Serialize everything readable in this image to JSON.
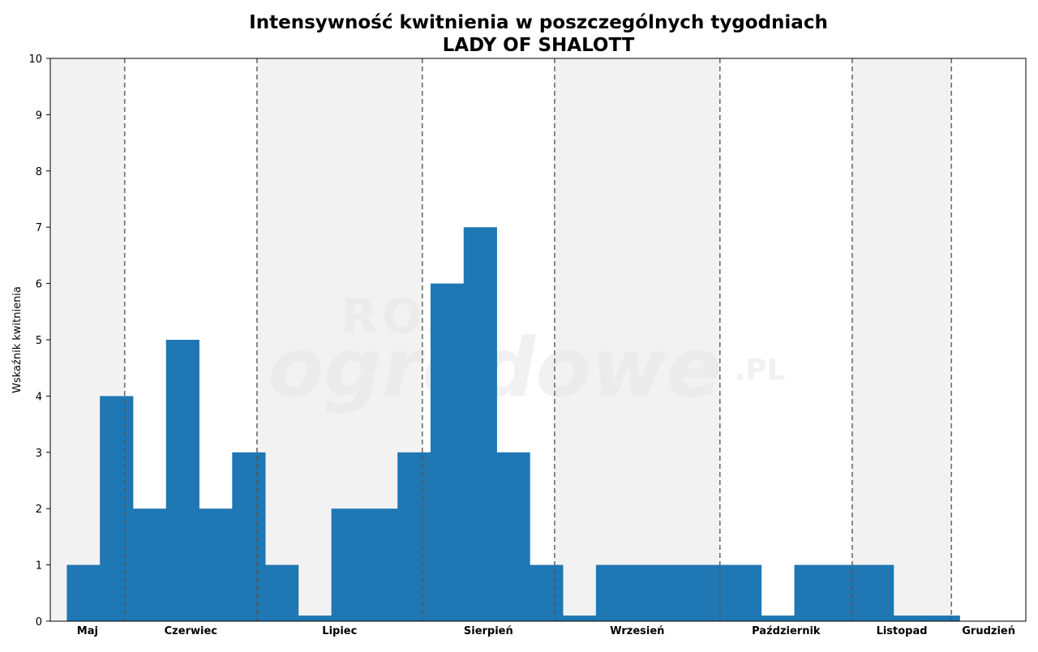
{
  "chart_data": {
    "type": "bar",
    "title": "Intensywność kwitnienia w poszczególnych tygodniach",
    "subtitle": "LADY OF SHALOTT",
    "xlabel": "",
    "ylabel": "Wskaźnik kwitnienia",
    "ylim": [
      0,
      10
    ],
    "yticks": [
      0,
      1,
      2,
      3,
      4,
      5,
      6,
      7,
      8,
      9,
      10
    ],
    "grid": false,
    "watermark": "ROZE ogrodowe .PL",
    "colors": {
      "bar": "#1f77b4",
      "shade": "#f2f2f2",
      "divider": "#555555"
    },
    "week_range": [
      1,
      30.5
    ],
    "values": [
      {
        "week": 2,
        "value": 1
      },
      {
        "week": 3,
        "value": 4
      },
      {
        "week": 4,
        "value": 2
      },
      {
        "week": 5,
        "value": 5
      },
      {
        "week": 6,
        "value": 2
      },
      {
        "week": 7,
        "value": 3
      },
      {
        "week": 8,
        "value": 1
      },
      {
        "week": 9,
        "value": 0.1
      },
      {
        "week": 10,
        "value": 2
      },
      {
        "week": 11,
        "value": 2
      },
      {
        "week": 12,
        "value": 3
      },
      {
        "week": 13,
        "value": 6
      },
      {
        "week": 14,
        "value": 7
      },
      {
        "week": 15,
        "value": 3
      },
      {
        "week": 16,
        "value": 1
      },
      {
        "week": 17,
        "value": 0.1
      },
      {
        "week": 18,
        "value": 1
      },
      {
        "week": 19,
        "value": 1
      },
      {
        "week": 20,
        "value": 1
      },
      {
        "week": 21,
        "value": 1
      },
      {
        "week": 22,
        "value": 1
      },
      {
        "week": 23,
        "value": 0.1
      },
      {
        "week": 24,
        "value": 1
      },
      {
        "week": 25,
        "value": 1
      },
      {
        "week": 26,
        "value": 1
      },
      {
        "week": 27,
        "value": 0.1
      },
      {
        "week": 28,
        "value": 0.1
      }
    ],
    "months": [
      {
        "name": "Maj",
        "start": 1,
        "end": 3.25,
        "shaded": true
      },
      {
        "name": "Czerwiec",
        "start": 3.25,
        "end": 7.25,
        "shaded": false
      },
      {
        "name": "Lipiec",
        "start": 7.25,
        "end": 12.25,
        "shaded": true
      },
      {
        "name": "Sierpień",
        "start": 12.25,
        "end": 16.25,
        "shaded": false
      },
      {
        "name": "Wrzesień",
        "start": 16.25,
        "end": 21.25,
        "shaded": true
      },
      {
        "name": "Październik",
        "start": 21.25,
        "end": 25.25,
        "shaded": false
      },
      {
        "name": "Listopad",
        "start": 25.25,
        "end": 28.25,
        "shaded": true
      },
      {
        "name": "Grudzień",
        "start": 28.25,
        "end": 30.5,
        "shaded": false
      }
    ]
  }
}
